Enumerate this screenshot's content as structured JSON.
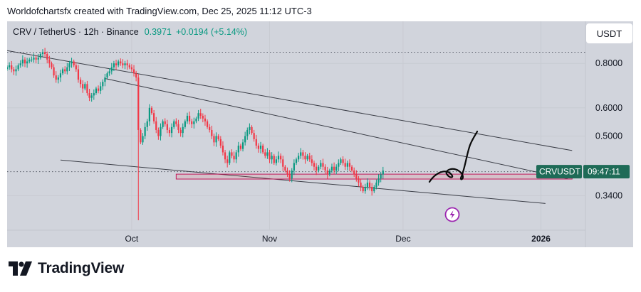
{
  "caption": "Worldofchartsfx created with TradingView.com, Dec 25, 2025 11:12 UTC-3",
  "brand": "TradingView",
  "chart_data": {
    "type": "candlestick",
    "header": {
      "symbol": "CRV / TetherUS · 12h · Binance",
      "price": "0.3971",
      "change": "+0.0194 (+5.14%)"
    },
    "currency_label": "USDT",
    "price_tag": {
      "symbol": "CRVUSDT",
      "countdown": "09:47:11",
      "value": 0.3971
    },
    "y_ticks": [
      "0.8000",
      "0.6000",
      "0.5000",
      "0.3400"
    ],
    "x_ticks": [
      "Oct",
      "Nov",
      "Dec",
      "2026"
    ],
    "y_scale": "log",
    "ylim": [
      0.272,
      1.05
    ],
    "xlim": [
      "2025-09-03",
      "2026-01-11"
    ],
    "dotted_levels": [
      0.86,
      0.3971
    ],
    "candle_closes": [
      0.78,
      0.79,
      0.77,
      0.76,
      0.77,
      0.79,
      0.8,
      0.82,
      0.8,
      0.81,
      0.82,
      0.82,
      0.83,
      0.82,
      0.83,
      0.85,
      0.86,
      0.85,
      0.82,
      0.8,
      0.78,
      0.74,
      0.72,
      0.73,
      0.75,
      0.77,
      0.76,
      0.78,
      0.8,
      0.81,
      0.79,
      0.77,
      0.72,
      0.7,
      0.68,
      0.7,
      0.66,
      0.64,
      0.65,
      0.66,
      0.68,
      0.67,
      0.69,
      0.71,
      0.73,
      0.75,
      0.76,
      0.78,
      0.8,
      0.79,
      0.81,
      0.8,
      0.79,
      0.8,
      0.79,
      0.78,
      0.77,
      0.75,
      0.73,
      0.52,
      0.48,
      0.5,
      0.53,
      0.55,
      0.6,
      0.58,
      0.55,
      0.52,
      0.5,
      0.53,
      0.55,
      0.54,
      0.52,
      0.51,
      0.53,
      0.55,
      0.54,
      0.52,
      0.51,
      0.53,
      0.55,
      0.57,
      0.55,
      0.54,
      0.55,
      0.56,
      0.58,
      0.57,
      0.56,
      0.55,
      0.53,
      0.52,
      0.5,
      0.48,
      0.5,
      0.49,
      0.47,
      0.45,
      0.43,
      0.42,
      0.45,
      0.44,
      0.43,
      0.45,
      0.47,
      0.46,
      0.48,
      0.5,
      0.52,
      0.53,
      0.51,
      0.49,
      0.47,
      0.46,
      0.47,
      0.45,
      0.44,
      0.45,
      0.43,
      0.44,
      0.42,
      0.43,
      0.44,
      0.43,
      0.41,
      0.4,
      0.39,
      0.38,
      0.4,
      0.42,
      0.43,
      0.44,
      0.45,
      0.44,
      0.43,
      0.44,
      0.43,
      0.42,
      0.41,
      0.4,
      0.41,
      0.42,
      0.41,
      0.4,
      0.39,
      0.4,
      0.41,
      0.4,
      0.41,
      0.42,
      0.43,
      0.42,
      0.41,
      0.42,
      0.41,
      0.4,
      0.39,
      0.38,
      0.37,
      0.36,
      0.35,
      0.36,
      0.37,
      0.36,
      0.35,
      0.36,
      0.37,
      0.38,
      0.39,
      0.4
    ],
    "candle_start_date": "2025-09-03",
    "annotations": [
      {
        "kind": "trendline",
        "points": [
          [
            "2025-09-02",
            0.8733
          ],
          [
            "2026-01-08",
            0.4553
          ]
        ]
      },
      {
        "kind": "trendline",
        "points": [
          [
            "2025-09-25",
            0.7254
          ],
          [
            "2026-01-07",
            0.3793
          ]
        ]
      },
      {
        "kind": "trendline",
        "points": [
          [
            "2025-09-15",
            0.4282
          ],
          [
            "2026-01-02",
            0.3234
          ]
        ]
      },
      {
        "kind": "zone",
        "from": [
          "2025-10-11",
          0.3908
        ],
        "to": [
          "2026-01-08",
          0.3786
        ]
      },
      {
        "kind": "freehand-arrow",
        "note": "projected breakout upward"
      }
    ]
  }
}
